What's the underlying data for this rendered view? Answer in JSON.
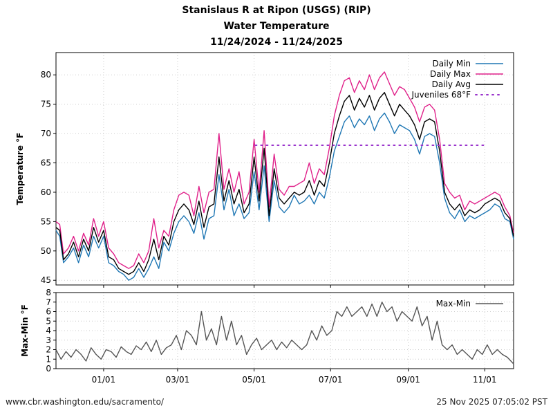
{
  "header": {
    "title_line1": "Stanislaus R at Ripon (USGS) (RIP)",
    "title_line2": "Water Temperature",
    "title_line3": "11/24/2024 - 11/24/2025"
  },
  "footer": {
    "source": "www.cbr.washington.edu/sacramento/",
    "timestamp": "25 Nov 2025 07:05:02 PST"
  },
  "colors": {
    "daily_min": "#1f77b4",
    "daily_max": "#e0218a",
    "daily_avg": "#000000",
    "juveniles": "#9932cc",
    "max_min": "#555555",
    "grid": "#cccccc"
  },
  "chart_data": [
    {
      "type": "line",
      "title": "Water Temperature",
      "ylabel": "Temperature °F",
      "xlabel": "",
      "ylim": [
        44.2,
        83.8
      ],
      "yticks": [
        45,
        50,
        55,
        60,
        65,
        70,
        75,
        80
      ],
      "xlim_days": [
        0,
        365
      ],
      "xticks": [
        {
          "label": "01/01",
          "day": 38
        },
        {
          "label": "03/01",
          "day": 97
        },
        {
          "label": "05/01",
          "day": 158
        },
        {
          "label": "07/01",
          "day": 219
        },
        {
          "label": "09/01",
          "day": 281
        },
        {
          "label": "11/01",
          "day": 342
        }
      ],
      "x_days": [
        0,
        3,
        6,
        10,
        14,
        18,
        22,
        26,
        30,
        34,
        38,
        42,
        46,
        50,
        54,
        58,
        62,
        66,
        70,
        74,
        78,
        82,
        86,
        90,
        94,
        98,
        102,
        106,
        110,
        114,
        118,
        122,
        126,
        130,
        134,
        138,
        142,
        146,
        150,
        154,
        158,
        162,
        166,
        170,
        174,
        178,
        182,
        186,
        190,
        194,
        198,
        202,
        206,
        210,
        214,
        218,
        222,
        226,
        230,
        234,
        238,
        242,
        246,
        250,
        254,
        258,
        262,
        266,
        270,
        274,
        278,
        282,
        286,
        290,
        294,
        298,
        302,
        306,
        310,
        314,
        318,
        322,
        326,
        330,
        334,
        338,
        342,
        346,
        350,
        354,
        358,
        362,
        365
      ],
      "series": [
        {
          "name": "Daily Min",
          "values": [
            53.5,
            52.5,
            48.0,
            49.0,
            50.5,
            48.0,
            51.0,
            49.0,
            52.5,
            50.5,
            52.5,
            48.0,
            47.5,
            46.5,
            46.0,
            45.0,
            45.5,
            47.0,
            45.5,
            47.0,
            49.0,
            47.0,
            51.5,
            50.0,
            53.0,
            55.0,
            56.0,
            55.0,
            53.0,
            56.5,
            52.0,
            55.5,
            56.0,
            63.0,
            57.0,
            60.5,
            56.0,
            58.0,
            55.5,
            56.5,
            63.5,
            57.0,
            64.5,
            55.0,
            62.0,
            57.5,
            56.5,
            57.5,
            59.5,
            58.0,
            58.5,
            59.5,
            58.0,
            60.0,
            59.0,
            62.5,
            67.0,
            69.5,
            72.0,
            73.0,
            71.0,
            72.5,
            71.5,
            73.0,
            70.5,
            72.5,
            73.5,
            72.0,
            70.0,
            71.5,
            71.0,
            70.5,
            69.0,
            66.5,
            69.5,
            70.0,
            69.5,
            65.0,
            59.0,
            56.5,
            55.5,
            57.0,
            55.0,
            56.0,
            55.5,
            56.0,
            56.5,
            57.0,
            58.0,
            57.5,
            55.5,
            55.0,
            52.0
          ]
        },
        {
          "name": "Daily Max",
          "values": [
            55.0,
            54.5,
            49.5,
            50.5,
            52.5,
            50.0,
            53.0,
            51.0,
            55.5,
            52.5,
            55.0,
            50.5,
            49.5,
            48.0,
            47.5,
            47.0,
            47.5,
            49.5,
            48.0,
            50.0,
            55.5,
            50.5,
            53.5,
            52.5,
            57.0,
            59.5,
            60.0,
            59.5,
            56.0,
            61.0,
            56.5,
            60.0,
            60.5,
            70.0,
            60.5,
            64.0,
            60.0,
            63.5,
            58.0,
            60.0,
            69.0,
            60.0,
            70.5,
            57.5,
            66.5,
            60.5,
            59.5,
            61.0,
            61.0,
            61.5,
            62.0,
            65.0,
            61.5,
            64.0,
            63.0,
            67.5,
            73.0,
            76.5,
            79.0,
            79.5,
            77.0,
            79.0,
            77.5,
            80.0,
            77.5,
            79.5,
            80.5,
            78.5,
            76.5,
            78.0,
            77.5,
            76.0,
            74.5,
            72.0,
            74.5,
            75.0,
            74.0,
            69.0,
            61.5,
            60.0,
            59.0,
            59.5,
            57.0,
            58.5,
            58.0,
            58.5,
            59.0,
            59.5,
            60.0,
            59.5,
            57.5,
            56.0,
            53.0
          ]
        },
        {
          "name": "Daily Avg",
          "values": [
            54.0,
            53.5,
            48.5,
            49.5,
            51.5,
            49.0,
            52.0,
            50.0,
            54.0,
            51.5,
            53.5,
            49.0,
            48.5,
            47.0,
            46.5,
            46.0,
            46.5,
            48.0,
            46.5,
            48.5,
            52.0,
            48.5,
            52.5,
            51.0,
            55.0,
            57.0,
            58.0,
            57.0,
            54.5,
            58.5,
            54.0,
            57.5,
            58.0,
            66.0,
            58.5,
            62.0,
            58.0,
            60.5,
            56.5,
            58.0,
            66.0,
            58.5,
            67.5,
            56.0,
            64.0,
            59.0,
            58.0,
            59.0,
            60.0,
            59.5,
            60.0,
            62.0,
            59.5,
            62.0,
            61.0,
            65.0,
            70.0,
            73.0,
            75.5,
            76.5,
            74.0,
            76.0,
            74.5,
            76.5,
            74.0,
            76.0,
            77.0,
            75.0,
            73.0,
            75.0,
            74.0,
            73.0,
            71.5,
            69.0,
            72.0,
            72.5,
            72.0,
            67.0,
            60.0,
            58.0,
            57.0,
            58.0,
            56.0,
            57.0,
            56.5,
            57.0,
            58.0,
            58.5,
            59.0,
            58.5,
            56.5,
            55.5,
            52.5
          ]
        },
        {
          "name": "Juveniles 68°F",
          "constant": 68,
          "x_start_day": 159,
          "x_end_day": 343
        }
      ],
      "legend": [
        "Daily Min",
        "Daily Max",
        "Daily Avg",
        "Juveniles 68°F"
      ],
      "legend_position": "top-right",
      "grid": true
    },
    {
      "type": "line",
      "ylabel": "Max-Min °F",
      "ylim": [
        0,
        8
      ],
      "yticks": [
        0,
        1,
        2,
        3,
        4,
        5,
        6,
        7,
        8
      ],
      "xlim_days": [
        0,
        365
      ],
      "xticks": [
        {
          "label": "01/01",
          "day": 38
        },
        {
          "label": "03/01",
          "day": 97
        },
        {
          "label": "05/01",
          "day": 158
        },
        {
          "label": "07/01",
          "day": 219
        },
        {
          "label": "09/01",
          "day": 281
        },
        {
          "label": "11/01",
          "day": 342
        }
      ],
      "x_days": [
        0,
        4,
        8,
        12,
        16,
        20,
        24,
        28,
        32,
        36,
        40,
        44,
        48,
        52,
        56,
        60,
        64,
        68,
        72,
        76,
        80,
        84,
        88,
        92,
        96,
        100,
        104,
        108,
        112,
        116,
        120,
        124,
        128,
        132,
        136,
        140,
        144,
        148,
        152,
        156,
        160,
        164,
        168,
        172,
        176,
        180,
        184,
        188,
        192,
        196,
        200,
        204,
        208,
        212,
        216,
        220,
        224,
        228,
        232,
        236,
        240,
        244,
        248,
        252,
        256,
        260,
        264,
        268,
        272,
        276,
        280,
        284,
        288,
        292,
        296,
        300,
        304,
        308,
        312,
        316,
        320,
        324,
        328,
        332,
        336,
        340,
        344,
        348,
        352,
        356,
        360,
        365
      ],
      "series": [
        {
          "name": "Max-Min",
          "values": [
            2.0,
            1.0,
            1.8,
            1.2,
            2.0,
            1.5,
            0.8,
            2.2,
            1.5,
            1.0,
            2.0,
            1.8,
            1.2,
            2.3,
            1.8,
            1.5,
            2.4,
            2.0,
            2.8,
            1.8,
            3.0,
            1.5,
            2.2,
            2.5,
            3.5,
            2.0,
            4.0,
            3.5,
            2.5,
            6.0,
            3.0,
            4.2,
            2.5,
            5.5,
            3.0,
            5.0,
            2.5,
            3.5,
            1.5,
            2.5,
            3.2,
            2.0,
            2.5,
            3.0,
            2.0,
            2.8,
            2.2,
            3.0,
            2.5,
            2.0,
            2.5,
            4.0,
            3.0,
            4.5,
            3.5,
            4.0,
            6.0,
            5.5,
            6.5,
            5.5,
            6.0,
            6.5,
            5.5,
            6.8,
            5.5,
            7.0,
            6.0,
            6.5,
            5.0,
            6.0,
            5.5,
            5.0,
            6.5,
            4.5,
            5.5,
            3.0,
            5.0,
            2.5,
            2.0,
            2.5,
            1.5,
            2.0,
            1.5,
            1.0,
            2.0,
            1.5,
            2.5,
            1.5,
            2.0,
            1.5,
            1.2,
            0.5
          ]
        }
      ],
      "legend": [
        "Max-Min"
      ],
      "legend_position": "top-right",
      "grid": true
    }
  ]
}
